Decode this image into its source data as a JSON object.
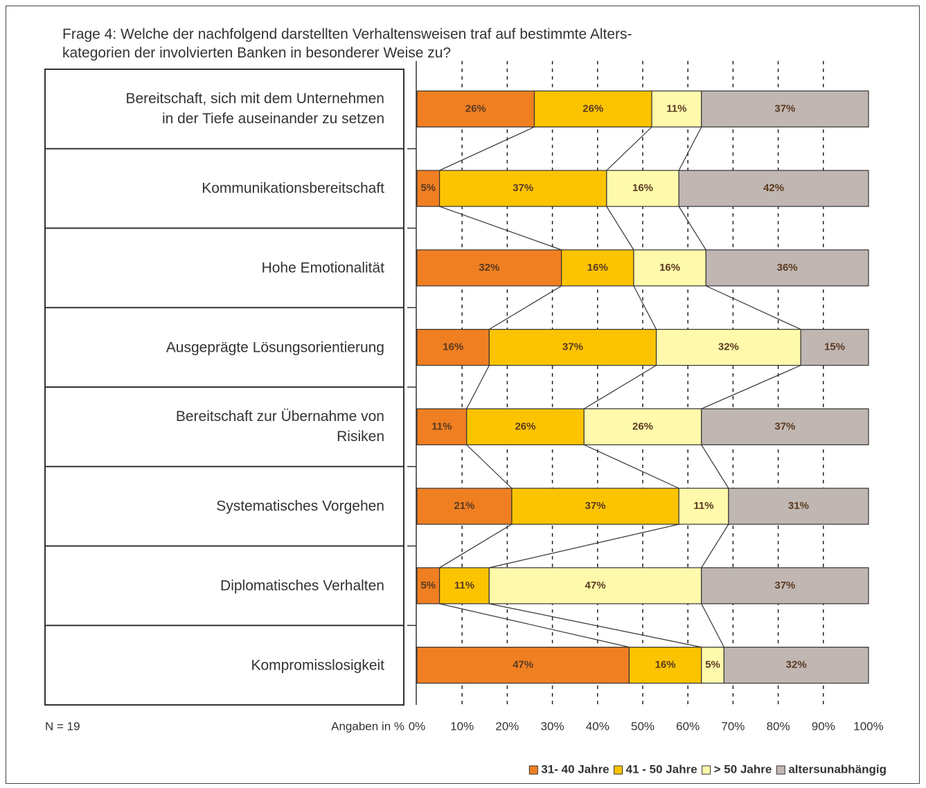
{
  "chart_data": {
    "type": "stacked_bar_horizontal",
    "title": "Frage 4: Welche der nachfolgend darstellten Verhaltensweisen traf auf bestimmte Alters-\nkategorien der involvierten Banken in besonderer Weise zu?",
    "categories": [
      "Bereitschaft, sich mit dem Unternehmen\nin der Tiefe auseinander zu setzen",
      "Kommunikationsbereitschaft",
      "Hohe Emotionalität",
      "Ausgeprägte Lösungsorientierung",
      "Bereitschaft zur Übernahme von\nRisiken",
      "Systematisches Vorgehen",
      "Diplomatisches Verhalten",
      "Kompromisslosigkeit"
    ],
    "series": [
      {
        "name": "31- 40 Jahre",
        "color": "#f07f22",
        "values": [
          26,
          5,
          32,
          16,
          11,
          21,
          5,
          47
        ],
        "value_labels": [
          "26%",
          "5%",
          "32%",
          "16%",
          "11%",
          "21%",
          "5%",
          "47%"
        ]
      },
      {
        "name": "41 - 50 Jahre",
        "color": "#fcc400",
        "values": [
          26,
          37,
          16,
          37,
          26,
          37,
          11,
          16
        ],
        "value_labels": [
          "26%",
          "37%",
          "16%",
          "37%",
          "26%",
          "37%",
          "11%",
          "16%"
        ]
      },
      {
        "name": "> 50 Jahre",
        "color": "#fffaab",
        "values": [
          11,
          16,
          16,
          32,
          26,
          11,
          47,
          5
        ],
        "value_labels": [
          "11%",
          "16%",
          "16%",
          "32%",
          "26%",
          "11%",
          "47%",
          "5%"
        ]
      },
      {
        "name": "altersunabhängig",
        "color": "#c0b6b2",
        "values": [
          37,
          42,
          36,
          15,
          37,
          31,
          37,
          32
        ],
        "value_labels": [
          "37%",
          "42%",
          "36%",
          "15%",
          "37%",
          "31%",
          "37%",
          "32%"
        ]
      }
    ],
    "xlim": [
      0,
      100
    ],
    "xticks": [
      {
        "value": 0,
        "label": "0%"
      },
      {
        "value": 10,
        "label": "10%"
      },
      {
        "value": 20,
        "label": "20%"
      },
      {
        "value": 30,
        "label": "30%"
      },
      {
        "value": 40,
        "label": "40%"
      },
      {
        "value": 50,
        "label": "50%"
      },
      {
        "value": 60,
        "label": "60%"
      },
      {
        "value": 70,
        "label": "70%"
      },
      {
        "value": 80,
        "label": "80%"
      },
      {
        "value": 90,
        "label": "90%"
      },
      {
        "value": 100,
        "label": "100%"
      }
    ],
    "grid": true,
    "legend": "bottom-right",
    "annotations": [
      "N = 19",
      "Angaben in %"
    ]
  }
}
